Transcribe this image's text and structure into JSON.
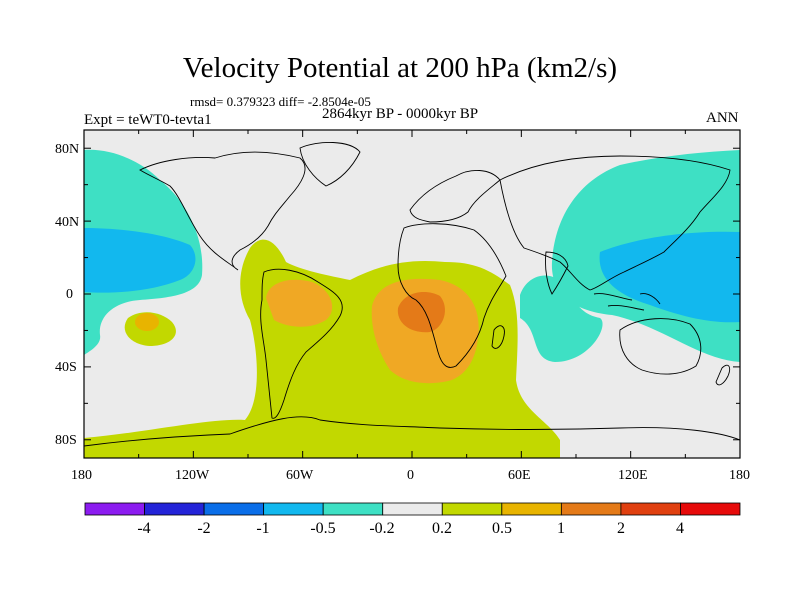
{
  "title": "Velocity Potential at 200 hPa (km2/s)",
  "stats": "rmsd= 0.379323 diff= -2.8504e-05",
  "period": "2864kyr BP - 0000kyr BP",
  "experiment": "Expt = teWT0-tevta1",
  "season": "ANN",
  "map": {
    "longitude_range": [
      -180,
      180
    ],
    "latitude_range": [
      -90,
      90
    ],
    "projection": "cylindrical equidistant",
    "y_tick_labels": [
      "80N",
      "40N",
      "0",
      "40S",
      "80S"
    ],
    "y_tick_values": [
      80,
      40,
      0,
      -40,
      -80
    ],
    "x_tick_labels": [
      "180",
      "120W",
      "60W",
      "0",
      "60E",
      "120E",
      "180"
    ],
    "x_tick_values": [
      -180,
      -120,
      -60,
      0,
      60,
      120,
      180
    ],
    "background_color": "#ebebeb",
    "fields": [
      {
        "name": "north-pacific-negative",
        "level": "-0.5 to -0.2",
        "color": "#3ee0c4"
      },
      {
        "name": "north-pacific-core",
        "level": "-1 to -0.5",
        "color": "#12b8ee"
      },
      {
        "name": "west-pacific-negative",
        "level": "-0.5 to -0.2",
        "color": "#3ee0c4"
      },
      {
        "name": "west-pacific-core",
        "level": "-1 to -0.5",
        "color": "#12b8ee"
      },
      {
        "name": "indian-ocean-negative",
        "level": "-0.5 to -0.2",
        "color": "#3ee0c4"
      },
      {
        "name": "atlantic-positive",
        "level": "0.2 to 0.5",
        "color": "#c2d800"
      },
      {
        "name": "south-america-max",
        "level": "0.5 to 1",
        "color": "#f0a824"
      },
      {
        "name": "africa-max",
        "level": "0.5 to 1",
        "color": "#f0a824"
      },
      {
        "name": "africa-core",
        "level": "1 to 2",
        "color": "#e47a18"
      },
      {
        "name": "south-pacific-positive",
        "level": "0.2 to 0.5",
        "color": "#c2d800"
      }
    ]
  },
  "colorbar": {
    "colors": [
      "#8c1cf0",
      "#2424d8",
      "#0a6ee8",
      "#12b8ee",
      "#3ee0c4",
      "#ebebeb",
      "#c2d800",
      "#e8b400",
      "#e47a18",
      "#e04010",
      "#e60a0a"
    ],
    "labels": [
      "-4",
      "-2",
      "-1",
      "-0.5",
      "-0.2",
      "0.2",
      "0.5",
      "1",
      "2",
      "4"
    ]
  }
}
